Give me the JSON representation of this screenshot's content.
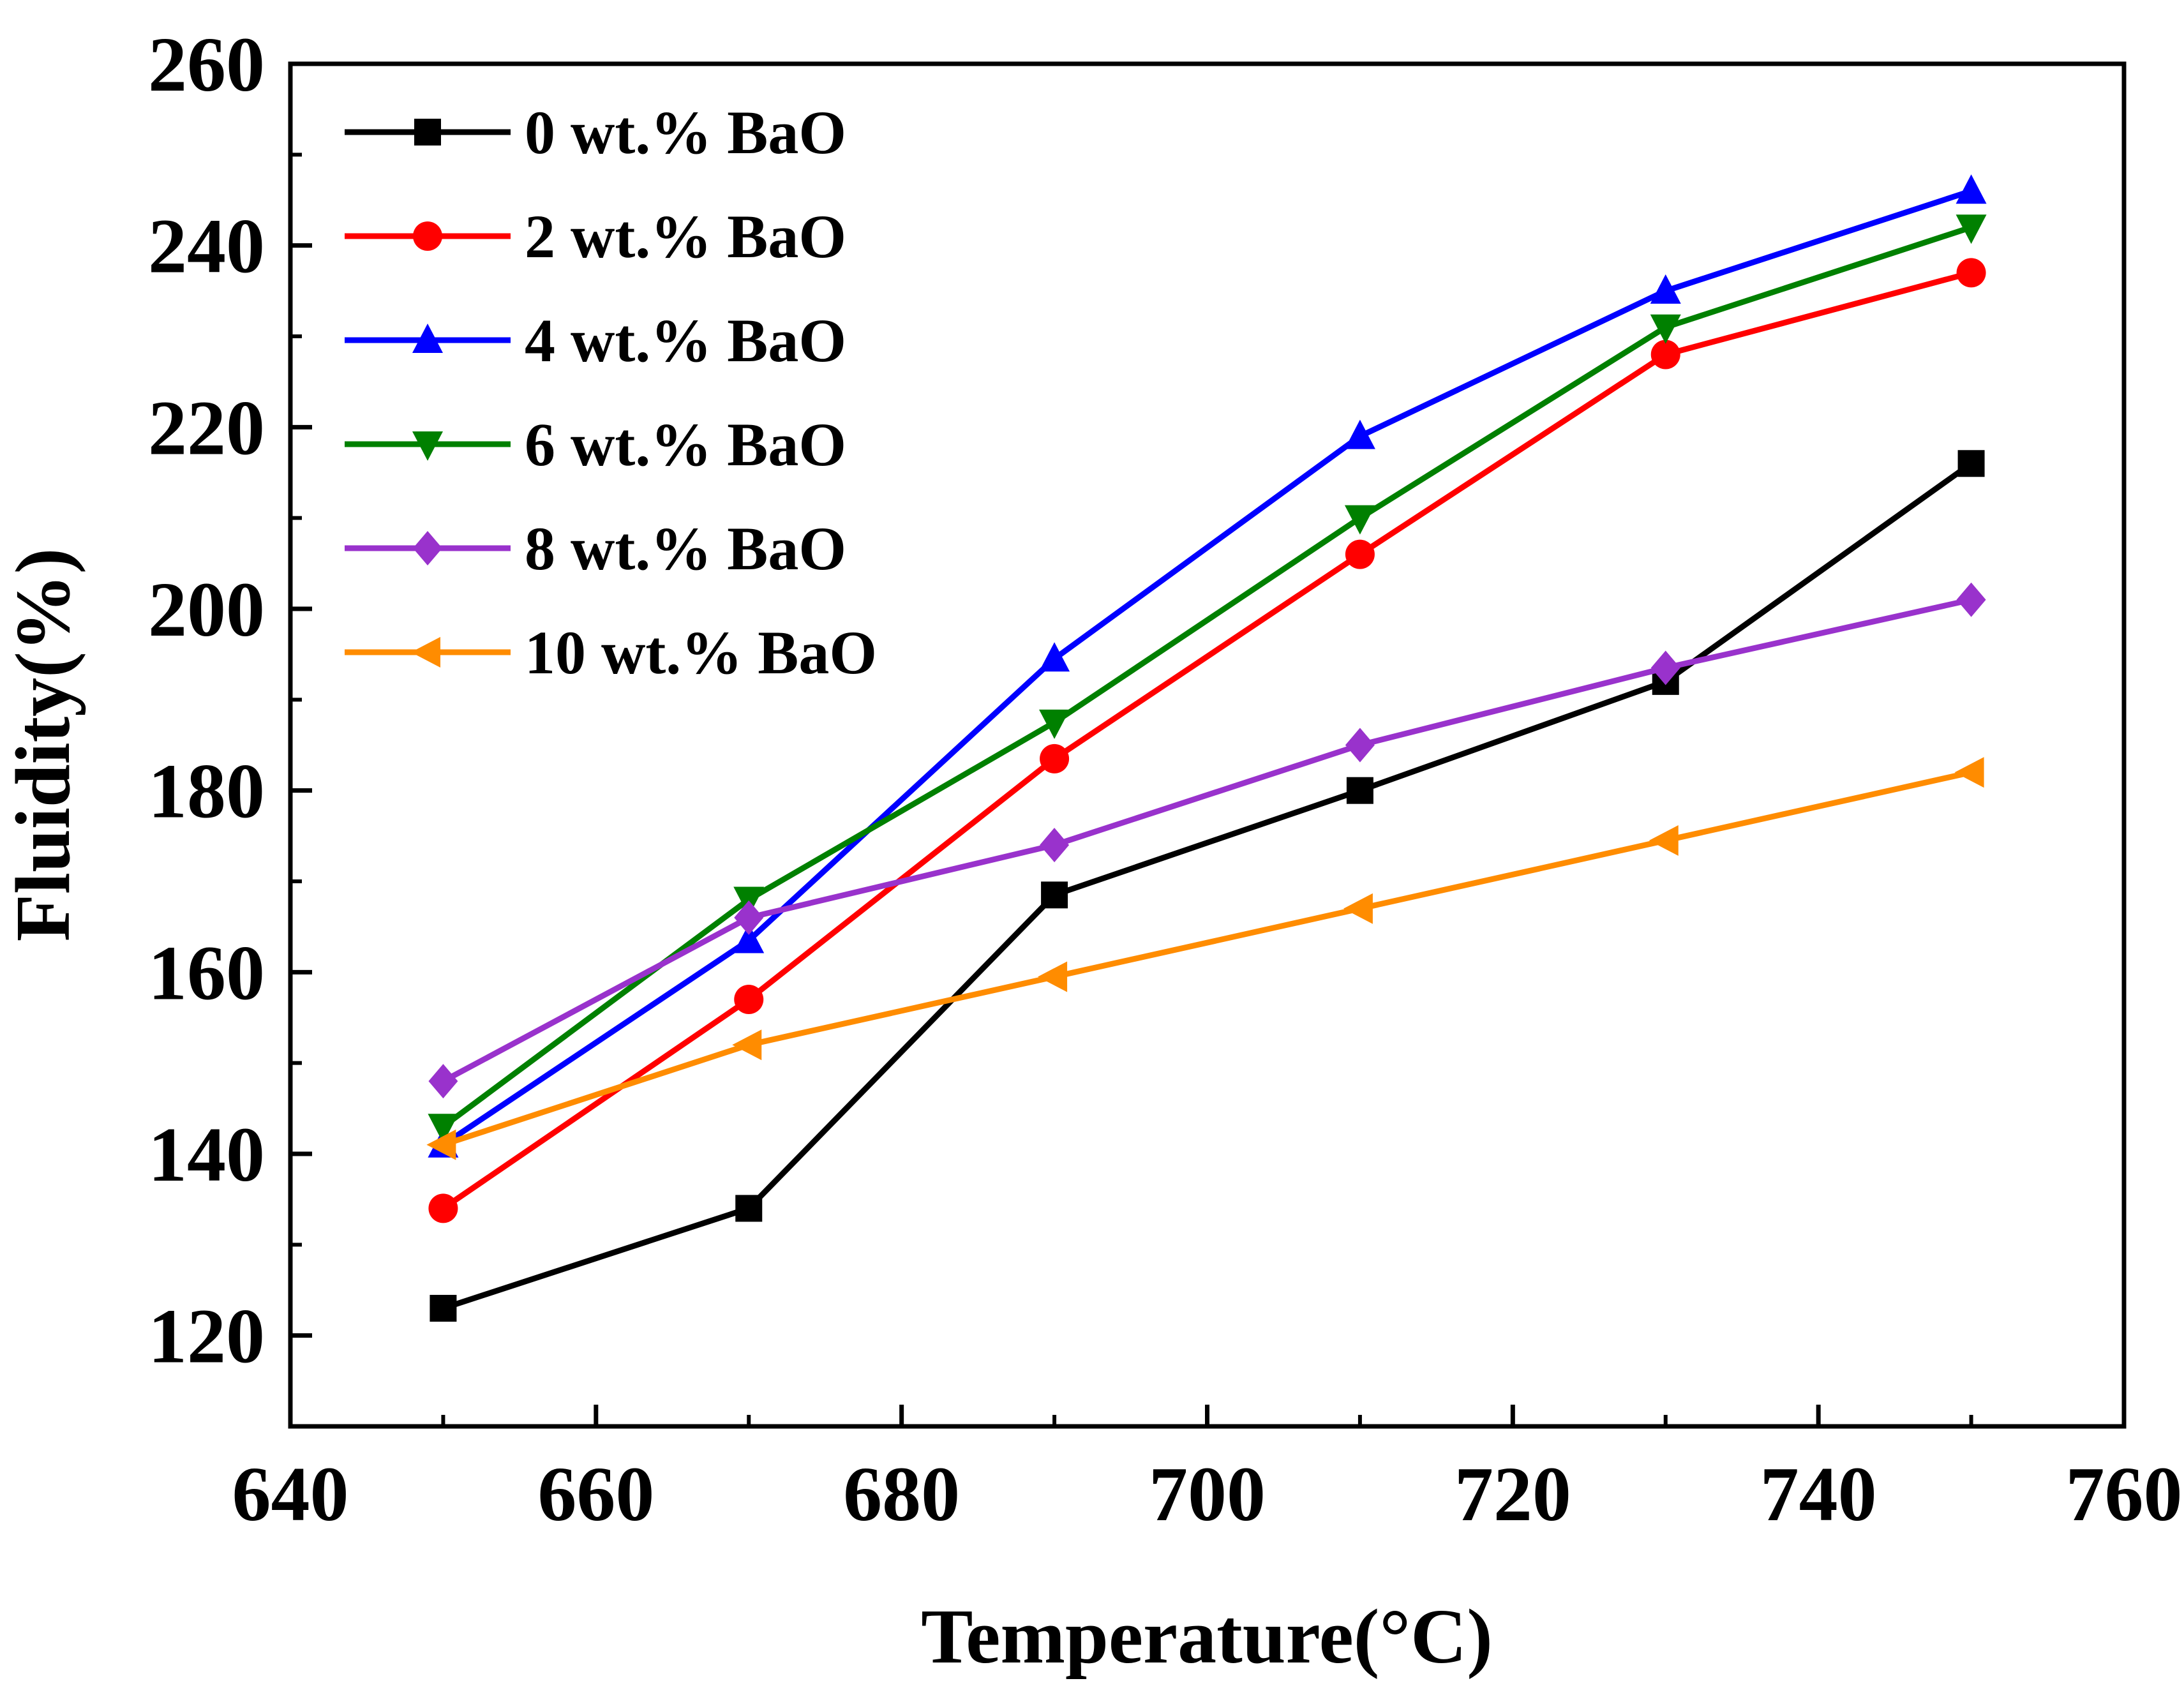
{
  "chart_data": {
    "type": "line",
    "title": "",
    "xlabel": "Temperature(°C)",
    "ylabel": "Fluidity(%)",
    "xlim": [
      640,
      760
    ],
    "ylim": [
      110,
      260
    ],
    "x_ticks": [
      640,
      660,
      680,
      700,
      720,
      740,
      760
    ],
    "y_ticks": [
      120,
      140,
      160,
      180,
      200,
      220,
      240,
      260
    ],
    "x_tick_labels": [
      "640",
      "660",
      "680",
      "700",
      "720",
      "740",
      "760"
    ],
    "y_tick_labels": [
      "120",
      "140",
      "160",
      "180",
      "200",
      "220",
      "240",
      "260"
    ],
    "grid": false,
    "legend_position": "top-left",
    "x": [
      650,
      670,
      690,
      710,
      730,
      750
    ],
    "series": [
      {
        "name": "0 wt.% BaO",
        "color": "#000000",
        "marker": "square",
        "values": [
          123,
          134,
          168.5,
          180,
          192,
          216
        ]
      },
      {
        "name": "2 wt.% BaO",
        "color": "#ff0000",
        "marker": "circle",
        "values": [
          134,
          157,
          183.5,
          206,
          228,
          237
        ]
      },
      {
        "name": "4 wt.% BaO",
        "color": "#0000ff",
        "marker": "triangle-up",
        "values": [
          141,
          163.5,
          194.5,
          219,
          235,
          246
        ]
      },
      {
        "name": "6 wt.% BaO",
        "color": "#008000",
        "marker": "triangle-down",
        "values": [
          143,
          168,
          187.5,
          210,
          231,
          242
        ]
      },
      {
        "name": "8 wt.% BaO",
        "color": "#9932cc",
        "marker": "diamond",
        "values": [
          148,
          166,
          174,
          185,
          193.5,
          201
        ]
      },
      {
        "name": "10 wt.% BaO",
        "color": "#ff8c00",
        "marker": "triangle-left",
        "values": [
          141,
          152,
          159.5,
          167,
          174.5,
          182
        ]
      }
    ]
  }
}
